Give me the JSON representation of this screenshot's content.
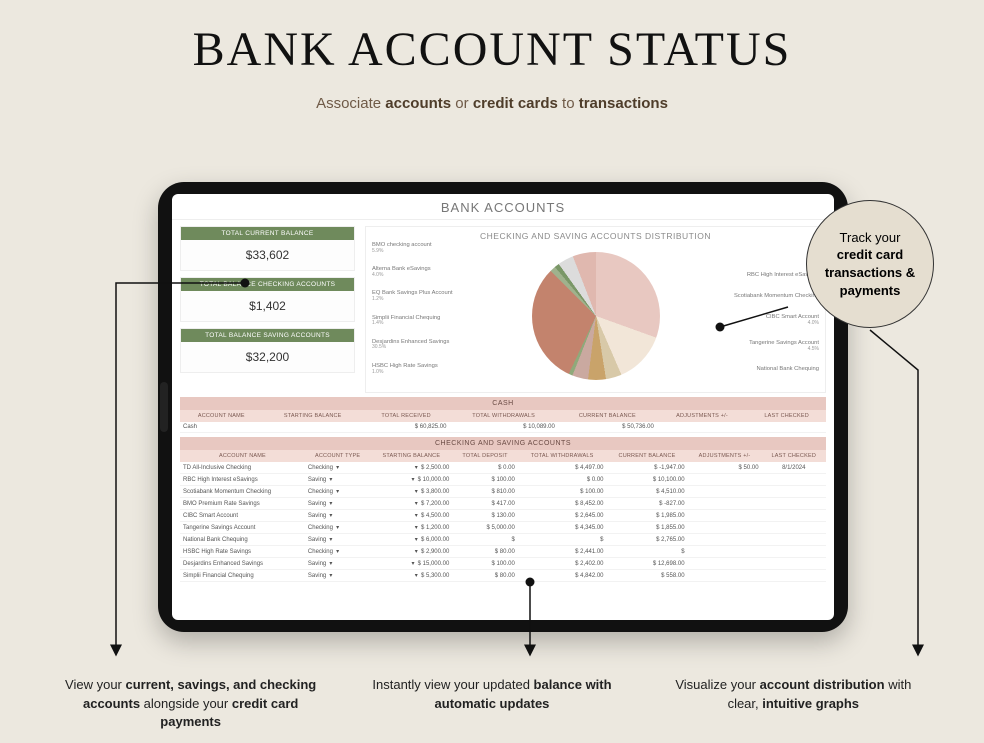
{
  "hero": {
    "title": "BANK ACCOUNT STATUS",
    "subtitle_plain1": "Associate ",
    "subtitle_bold1": "accounts",
    "subtitle_plain2": " or ",
    "subtitle_bold2": "credit cards",
    "subtitle_plain3": " to ",
    "subtitle_bold3": "transactions"
  },
  "screen": {
    "title": "BANK ACCOUNTS"
  },
  "kpis": [
    {
      "label": "TOTAL CURRENT BALANCE",
      "value": "$33,602"
    },
    {
      "label": "TOTAL BALANCE CHECKING ACCOUNTS",
      "value": "$1,402"
    },
    {
      "label": "TOTAL BALANCE SAVING ACCOUNTS",
      "value": "$32,200"
    }
  ],
  "chart": {
    "type": "pie",
    "title": "CHECKING AND SAVING ACCOUNTS DISTRIBUTION",
    "slices": [
      {
        "label": "RBC High Interest eSavings",
        "pct": 30.5,
        "color": "#e8c8c1"
      },
      {
        "label": "Scotiabank Momentum Checking",
        "pct": 13.0,
        "color": "#f2e6d8"
      },
      {
        "label": "CIBC Smart Account",
        "pct": 4.0,
        "color": "#d8c9a8"
      },
      {
        "label": "Tangerine Savings Account",
        "pct": 4.5,
        "color": "#c9a36a"
      },
      {
        "label": "National Bank Chequing",
        "pct": 4.0,
        "color": "#caa9a0"
      },
      {
        "label": "HSBC High Rate Savings",
        "pct": 1.0,
        "color": "#8fa97a"
      },
      {
        "label": "Desjardins Enhanced Savings",
        "pct": 30.5,
        "color": "#c3836d"
      },
      {
        "label": "Simplii Financial Chequing",
        "pct": 1.4,
        "color": "#9fb28d"
      },
      {
        "label": "EQ Bank Savings Plus Account",
        "pct": 1.2,
        "color": "#7a9767"
      },
      {
        "label": "Alterna Bank eSavings",
        "pct": 4.0,
        "color": "#dcdcdc"
      },
      {
        "label": "BMO checking account",
        "pct": 5.9,
        "color": "#e0b8af"
      }
    ],
    "left_labels": [
      {
        "name": "BMO checking account",
        "pct": "5.9%"
      },
      {
        "name": "Alterna Bank eSavings",
        "pct": "4.0%"
      },
      {
        "name": "EQ Bank Savings Plus Account",
        "pct": "1.2%"
      },
      {
        "name": "Simplii Financial Chequing",
        "pct": "1.4%"
      },
      {
        "name": "Desjardins Enhanced Savings",
        "pct": "30.5%"
      },
      {
        "name": "HSBC High Rate Savings",
        "pct": "1.0%"
      }
    ],
    "right_labels": [
      {
        "name": "RBC High Interest eSavings",
        "pct": ""
      },
      {
        "name": "Scotiabank Momentum Checking",
        "pct": ""
      },
      {
        "name": "CIBC Smart Account",
        "pct": "4.0%"
      },
      {
        "name": "Tangerine Savings Account",
        "pct": "4.5%"
      },
      {
        "name": "National Bank Chequing",
        "pct": ""
      }
    ],
    "background_color": "#ffffff"
  },
  "cash_table": {
    "caption": "CASH",
    "columns": [
      "ACCOUNT NAME",
      "STARTING BALANCE",
      "TOTAL RECEIVED",
      "TOTAL WITHDRAWALS",
      "CURRENT BALANCE",
      "ADJUSTMENTS +/-",
      "LAST CHECKED"
    ],
    "rows": [
      {
        "name": "Cash",
        "start": "",
        "recv": "$   60,825.00",
        "wdr": "$   10,089.00",
        "bal": "$   50,736.00",
        "adj": "",
        "last": ""
      }
    ]
  },
  "accounts_table": {
    "caption": "CHECKING AND SAVING ACCOUNTS",
    "columns": [
      "ACCOUNT NAME",
      "ACCOUNT TYPE",
      "STARTING BALANCE",
      "TOTAL DEPOSIT",
      "TOTAL WITHDRAWALS",
      "CURRENT BALANCE",
      "ADJUSTMENTS +/-",
      "LAST CHECKED"
    ],
    "rows": [
      {
        "name": "TD All-Inclusive Checking",
        "type": "Checking",
        "start": "2,500.00",
        "dep": "0.00",
        "wdr": "4,497.00",
        "bal": "-1,947.00",
        "adj": "50.00",
        "last": "8/1/2024"
      },
      {
        "name": "RBC High Interest eSavings",
        "type": "Saving",
        "start": "10,000.00",
        "dep": "100.00",
        "wdr": "0.00",
        "bal": "10,100.00",
        "adj": "",
        "last": ""
      },
      {
        "name": "Scotiabank Momentum Checking",
        "type": "Checking",
        "start": "3,800.00",
        "dep": "810.00",
        "wdr": "100.00",
        "bal": "4,510.00",
        "adj": "",
        "last": ""
      },
      {
        "name": "BMO Premium Rate Savings",
        "type": "Saving",
        "start": "7,200.00",
        "dep": "417.00",
        "wdr": "8,452.00",
        "bal": "-827.00",
        "adj": "",
        "last": ""
      },
      {
        "name": "CIBC Smart Account",
        "type": "Saving",
        "start": "4,500.00",
        "dep": "130.00",
        "wdr": "2,645.00",
        "bal": "1,985.00",
        "adj": "",
        "last": ""
      },
      {
        "name": "Tangerine Savings Account",
        "type": "Checking",
        "start": "1,200.00",
        "dep": "5,000.00",
        "wdr": "4,345.00",
        "bal": "1,855.00",
        "adj": "",
        "last": ""
      },
      {
        "name": "National Bank Chequing",
        "type": "Saving",
        "start": "6,000.00",
        "dep": "",
        "wdr": "",
        "bal": "2,765.00",
        "adj": "",
        "last": ""
      },
      {
        "name": "HSBC High Rate Savings",
        "type": "Checking",
        "start": "2,900.00",
        "dep": "80.00",
        "wdr": "2,441.00",
        "bal": "",
        "adj": "",
        "last": ""
      },
      {
        "name": "Desjardins Enhanced Savings",
        "type": "Saving",
        "start": "15,000.00",
        "dep": "100.00",
        "wdr": "2,402.00",
        "bal": "12,698.00",
        "adj": "",
        "last": ""
      },
      {
        "name": "Simplii Financial Chequing",
        "type": "Saving",
        "start": "5,300.00",
        "dep": "80.00",
        "wdr": "4,842.00",
        "bal": "558.00",
        "adj": "",
        "last": ""
      }
    ]
  },
  "callouts": {
    "circle_l1": "Track your",
    "circle_b1": "credit card transactions & payments",
    "left_plain1": "View your ",
    "left_bold1": "current, savings, and checking accounts",
    "left_plain2": " alongside your ",
    "left_bold2": "credit card payments",
    "mid_plain1": "Instantly view your updated ",
    "mid_bold1": "balance with automatic updates",
    "right_plain1": "Visualize your ",
    "right_bold1": "account distribution",
    "right_plain2": " with clear, ",
    "right_bold2": "intuitive graphs"
  },
  "style": {
    "kpi_header_bg": "#6f8a5c",
    "table_caption_bg": "#e8c8c1",
    "table_header_bg": "#f3ddd7",
    "page_bg": "#ece8df"
  }
}
